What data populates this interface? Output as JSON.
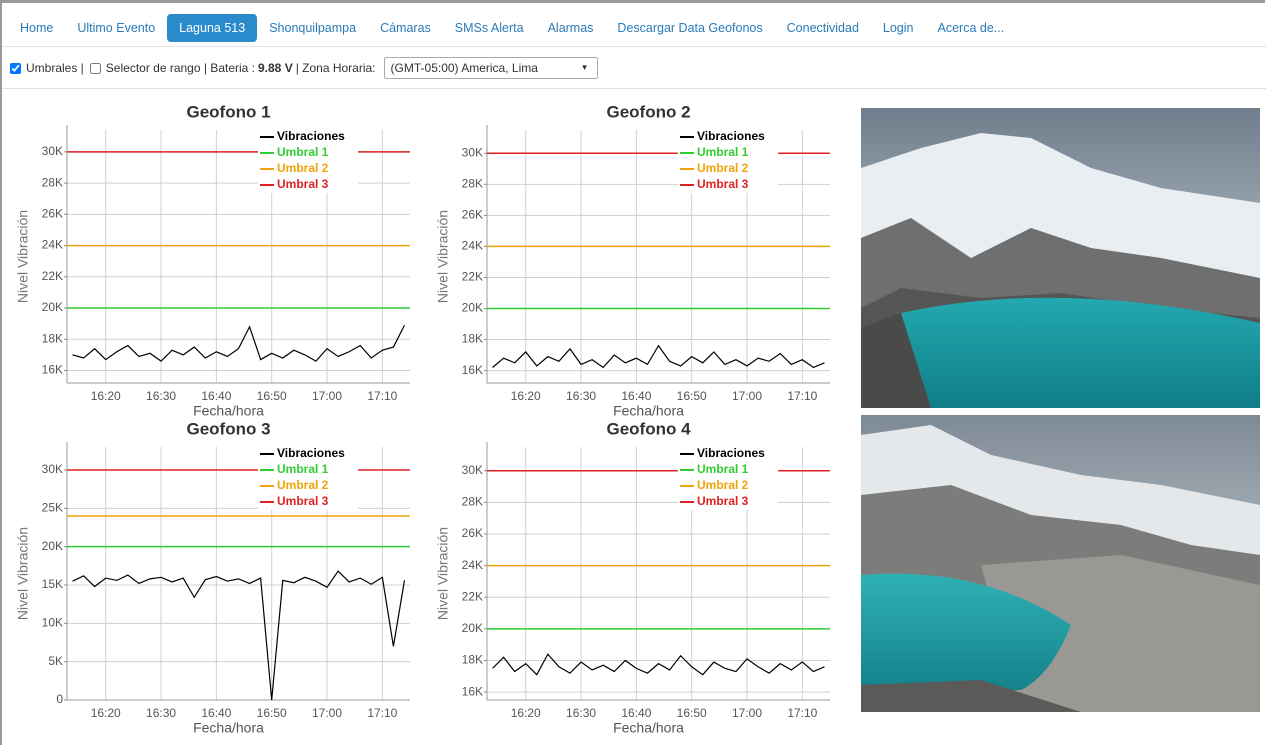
{
  "nav": [
    {
      "label": "Home"
    },
    {
      "label": "Ultimo Evento"
    },
    {
      "label": "Laguna 513",
      "active": true
    },
    {
      "label": "Shonquilpampa"
    },
    {
      "label": "Cámaras"
    },
    {
      "label": "SMSs Alerta"
    },
    {
      "label": "Alarmas"
    },
    {
      "label": "Descargar Data Geofonos"
    },
    {
      "label": "Conectividad"
    },
    {
      "label": "Login"
    },
    {
      "label": "Acerca de..."
    }
  ],
  "toolbar": {
    "umbrales": {
      "label": "Umbrales |",
      "checked": true
    },
    "selector": {
      "label": "Selector de rango | Bateria :",
      "checked": false
    },
    "battery": "9.88 V",
    "tz_label": "| Zona Horaria:",
    "tz_value": "(GMT-05:00) America, Lima"
  },
  "chart_data": [
    {
      "type": "line",
      "title": "Geofono 1",
      "x_label": "Fecha/hora",
      "y_label": "Nivel Vibración",
      "grid": true,
      "xlim": [
        "16:13",
        "17:15"
      ],
      "xticks": [
        "16:20",
        "16:30",
        "16:40",
        "16:50",
        "17:00",
        "17:10"
      ],
      "ylim": [
        15200,
        31400
      ],
      "yticks": [
        {
          "value": 16000,
          "label": "16K"
        },
        {
          "value": 18000,
          "label": "18K"
        },
        {
          "value": 20000,
          "label": "20K"
        },
        {
          "value": 22000,
          "label": "22K"
        },
        {
          "value": 24000,
          "label": "24K"
        },
        {
          "value": 26000,
          "label": "26K"
        },
        {
          "value": 28000,
          "label": "28K"
        },
        {
          "value": 30000,
          "label": "30K"
        }
      ],
      "x": [
        "16:14",
        "16:16",
        "16:18",
        "16:20",
        "16:22",
        "16:24",
        "16:26",
        "16:28",
        "16:30",
        "16:32",
        "16:34",
        "16:36",
        "16:38",
        "16:40",
        "16:42",
        "16:44",
        "16:46",
        "16:48",
        "16:50",
        "16:52",
        "16:54",
        "16:56",
        "16:58",
        "17:00",
        "17:02",
        "17:04",
        "17:06",
        "17:08",
        "17:10",
        "17:12",
        "17:14"
      ],
      "series": [
        {
          "name": "Vibraciones",
          "color": "#000000",
          "values": [
            17000,
            16800,
            17400,
            16700,
            17200,
            17600,
            16900,
            17100,
            16600,
            17300,
            17000,
            17500,
            16800,
            17200,
            16900,
            17400,
            18800,
            16700,
            17100,
            16800,
            17300,
            17000,
            16600,
            17400,
            16900,
            17200,
            17600,
            16800,
            17300,
            17500,
            18900
          ]
        },
        {
          "name": "Umbral 1",
          "color": "#33cc33",
          "x": [
            "16:13",
            "17:15"
          ],
          "values": [
            20000,
            20000
          ]
        },
        {
          "name": "Umbral 2",
          "color": "#f0a30a",
          "x": [
            "16:13",
            "17:15"
          ],
          "values": [
            24000,
            24000
          ]
        },
        {
          "name": "Umbral 3",
          "color": "#dd2222",
          "x": [
            "16:13",
            "17:15"
          ],
          "values": [
            30000,
            30000
          ]
        }
      ]
    },
    {
      "type": "line",
      "title": "Geofono 2",
      "x_label": "Fecha/hora",
      "y_label": "Nivel Vibración",
      "grid": true,
      "xlim": [
        "16:13",
        "17:15"
      ],
      "xticks": [
        "16:20",
        "16:30",
        "16:40",
        "16:50",
        "17:00",
        "17:10"
      ],
      "ylim": [
        15200,
        31500
      ],
      "yticks": [
        {
          "value": 16000,
          "label": "16K"
        },
        {
          "value": 18000,
          "label": "18K"
        },
        {
          "value": 20000,
          "label": "20K"
        },
        {
          "value": 22000,
          "label": "22K"
        },
        {
          "value": 24000,
          "label": "24K"
        },
        {
          "value": 26000,
          "label": "26K"
        },
        {
          "value": 28000,
          "label": "28K"
        },
        {
          "value": 30000,
          "label": "30K"
        }
      ],
      "x": [
        "16:14",
        "16:16",
        "16:18",
        "16:20",
        "16:22",
        "16:24",
        "16:26",
        "16:28",
        "16:30",
        "16:32",
        "16:34",
        "16:36",
        "16:38",
        "16:40",
        "16:42",
        "16:44",
        "16:46",
        "16:48",
        "16:50",
        "16:52",
        "16:54",
        "16:56",
        "16:58",
        "17:00",
        "17:02",
        "17:04",
        "17:06",
        "17:08",
        "17:10",
        "17:12",
        "17:14"
      ],
      "series": [
        {
          "name": "Vibraciones",
          "color": "#000000",
          "values": [
            16200,
            16800,
            16500,
            17200,
            16300,
            16900,
            16600,
            17400,
            16400,
            16700,
            16200,
            17000,
            16500,
            16800,
            16400,
            17600,
            16600,
            16300,
            16900,
            16500,
            17200,
            16400,
            16700,
            16300,
            16800,
            16600,
            17100,
            16400,
            16700,
            16200,
            16500
          ]
        },
        {
          "name": "Umbral 1",
          "color": "#33cc33",
          "x": [
            "16:13",
            "17:15"
          ],
          "values": [
            20000,
            20000
          ]
        },
        {
          "name": "Umbral 2",
          "color": "#f0a30a",
          "x": [
            "16:13",
            "17:15"
          ],
          "values": [
            24000,
            24000
          ]
        },
        {
          "name": "Umbral 3",
          "color": "#dd2222",
          "x": [
            "16:13",
            "17:15"
          ],
          "values": [
            30000,
            30000
          ]
        }
      ]
    },
    {
      "type": "line",
      "title": "Geofono 3",
      "x_label": "Fecha/hora",
      "y_label": "Nivel Vibración",
      "grid": true,
      "xlim": [
        "16:13",
        "17:15"
      ],
      "xticks": [
        "16:20",
        "16:30",
        "16:40",
        "16:50",
        "17:00",
        "17:10"
      ],
      "ylim": [
        0,
        33000
      ],
      "yticks": [
        0,
        {
          "value": 5000,
          "label": "5K"
        },
        {
          "value": 10000,
          "label": "10K"
        },
        {
          "value": 15000,
          "label": "15K"
        },
        {
          "value": 20000,
          "label": "20K"
        },
        {
          "value": 25000,
          "label": "25K"
        },
        {
          "value": 30000,
          "label": "30K"
        }
      ],
      "x": [
        "16:14",
        "16:16",
        "16:18",
        "16:20",
        "16:22",
        "16:24",
        "16:26",
        "16:28",
        "16:30",
        "16:32",
        "16:34",
        "16:36",
        "16:38",
        "16:40",
        "16:42",
        "16:44",
        "16:46",
        "16:48",
        "16:50",
        "16:52",
        "16:54",
        "16:56",
        "16:58",
        "17:00",
        "17:02",
        "17:04",
        "17:06",
        "17:08",
        "17:10",
        "17:12",
        "17:14"
      ],
      "series": [
        {
          "name": "Vibraciones",
          "color": "#000000",
          "values": [
            15500,
            16200,
            14800,
            15900,
            15600,
            16300,
            15200,
            15800,
            16000,
            15400,
            15900,
            13400,
            15700,
            16100,
            15500,
            15800,
            15200,
            15900,
            0,
            15600,
            15300,
            16000,
            15500,
            14700,
            16800,
            15400,
            15900,
            15100,
            16000,
            7000,
            15600
          ]
        },
        {
          "name": "Umbral 1",
          "color": "#33cc33",
          "x": [
            "16:13",
            "17:15"
          ],
          "values": [
            20000,
            20000
          ]
        },
        {
          "name": "Umbral 2",
          "color": "#f0a30a",
          "x": [
            "16:13",
            "17:15"
          ],
          "values": [
            24000,
            24000
          ]
        },
        {
          "name": "Umbral 3",
          "color": "#dd2222",
          "x": [
            "16:13",
            "17:15"
          ],
          "values": [
            30000,
            30000
          ]
        }
      ]
    },
    {
      "type": "line",
      "title": "Geofono 4",
      "x_label": "Fecha/hora",
      "y_label": "Nivel Vibración",
      "grid": true,
      "xlim": [
        "16:13",
        "17:15"
      ],
      "xticks": [
        "16:20",
        "16:30",
        "16:40",
        "16:50",
        "17:00",
        "17:10"
      ],
      "ylim": [
        15500,
        31500
      ],
      "yticks": [
        {
          "value": 16000,
          "label": "16K"
        },
        {
          "value": 18000,
          "label": "18K"
        },
        {
          "value": 20000,
          "label": "20K"
        },
        {
          "value": 22000,
          "label": "22K"
        },
        {
          "value": 24000,
          "label": "24K"
        },
        {
          "value": 26000,
          "label": "26K"
        },
        {
          "value": 28000,
          "label": "28K"
        },
        {
          "value": 30000,
          "label": "30K"
        }
      ],
      "x": [
        "16:14",
        "16:16",
        "16:18",
        "16:20",
        "16:22",
        "16:24",
        "16:26",
        "16:28",
        "16:30",
        "16:32",
        "16:34",
        "16:36",
        "16:38",
        "16:40",
        "16:42",
        "16:44",
        "16:46",
        "16:48",
        "16:50",
        "16:52",
        "16:54",
        "16:56",
        "16:58",
        "17:00",
        "17:02",
        "17:04",
        "17:06",
        "17:08",
        "17:10",
        "17:12",
        "17:14"
      ],
      "series": [
        {
          "name": "Vibraciones",
          "color": "#000000",
          "values": [
            17500,
            18200,
            17300,
            17800,
            17100,
            18400,
            17600,
            17200,
            17900,
            17400,
            17700,
            17300,
            18000,
            17500,
            17200,
            17800,
            17400,
            18300,
            17600,
            17100,
            17900,
            17500,
            17300,
            18100,
            17600,
            17200,
            17800,
            17400,
            17900,
            17300,
            17600
          ]
        },
        {
          "name": "Umbral 1",
          "color": "#33cc33",
          "x": [
            "16:13",
            "17:15"
          ],
          "values": [
            20000,
            20000
          ]
        },
        {
          "name": "Umbral 2",
          "color": "#f0a30a",
          "x": [
            "16:13",
            "17:15"
          ],
          "values": [
            24000,
            24000
          ]
        },
        {
          "name": "Umbral 3",
          "color": "#dd2222",
          "x": [
            "16:13",
            "17:15"
          ],
          "values": [
            30000,
            30000
          ]
        }
      ]
    }
  ]
}
